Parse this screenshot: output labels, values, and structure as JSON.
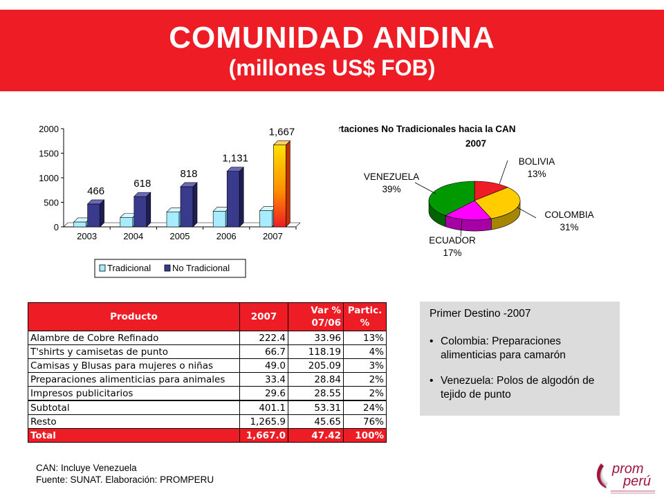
{
  "header": {
    "title": "COMUNIDAD ANDINA",
    "subtitle": "(millones US$ FOB)"
  },
  "chart_data": [
    {
      "type": "bar",
      "categories": [
        "2003",
        "2004",
        "2005",
        "2006",
        "2007"
      ],
      "series": [
        {
          "name": "Tradicional",
          "values": [
            100,
            190,
            300,
            320,
            330
          ]
        },
        {
          "name": "No Tradicional",
          "values": [
            466,
            618,
            818,
            1131,
            1667
          ]
        }
      ],
      "data_labels": [
        "466",
        "618",
        "818",
        "1,131",
        "1,667"
      ],
      "yticks": [
        "0",
        "500",
        "1000",
        "1500",
        "2000"
      ],
      "ylim": [
        0,
        2000
      ],
      "legend": "bottom",
      "colors": {
        "tradicional": "#a8ecff",
        "no_tradicional": "#3a3a8c",
        "highlight": "#ff8800"
      }
    },
    {
      "type": "pie",
      "title": "Exportaciones No Tradicionales hacia la CAN",
      "subtitle": "2007",
      "slices": [
        {
          "label": "BOLIVIA",
          "pct_label": "13%",
          "value": 13,
          "color": "#ee1c24"
        },
        {
          "label": "COLOMBIA",
          "pct_label": "31%",
          "value": 31,
          "color": "#ffcc00"
        },
        {
          "label": "ECUADOR",
          "pct_label": "17%",
          "value": 17,
          "color": "#ff00ff"
        },
        {
          "label": "VENEZUELA",
          "pct_label": "39%",
          "value": 39,
          "color": "#009900"
        }
      ]
    }
  ],
  "table": {
    "headers": {
      "product": "Producto",
      "year": "2007",
      "var": [
        "Var %",
        "07/06"
      ],
      "partic": [
        "Partic.",
        "%"
      ]
    },
    "rows": [
      [
        "Alambre de Cobre Refinado",
        "222.4",
        "33.96",
        "13%"
      ],
      [
        "T'shirts y camisetas de punto",
        "66.7",
        "118.19",
        "4%"
      ],
      [
        "Camisas y Blusas para mujeres o niñas",
        "49.0",
        "205.09",
        "3%"
      ],
      [
        "Preparaciones alimenticias para animales",
        "33.4",
        "28.84",
        "2%"
      ],
      [
        "Impresos publicitarios",
        "29.6",
        "28.55",
        "2%"
      ]
    ],
    "subtotal": [
      "Subtotal",
      "401.1",
      "53.31",
      "24%"
    ],
    "resto": [
      "Resto",
      "1,265.9",
      "45.65",
      "76%"
    ],
    "total": [
      "Total",
      "1,667.0",
      "47.42",
      "100%"
    ]
  },
  "destino": {
    "heading": "Primer Destino -2007",
    "bullet": "•",
    "items": [
      "Colombia: Preparaciones alimenticias para camarón",
      "Venezuela: Polos de algodón de tejido de punto"
    ]
  },
  "notes": {
    "can": "CAN: Incluye Venezuela",
    "fuente": "Fuente: SUNAT.  Elaboración: PROMPERU"
  },
  "logo": {
    "line1": "prom",
    "line2": "perú",
    "color": "#a0153e"
  }
}
